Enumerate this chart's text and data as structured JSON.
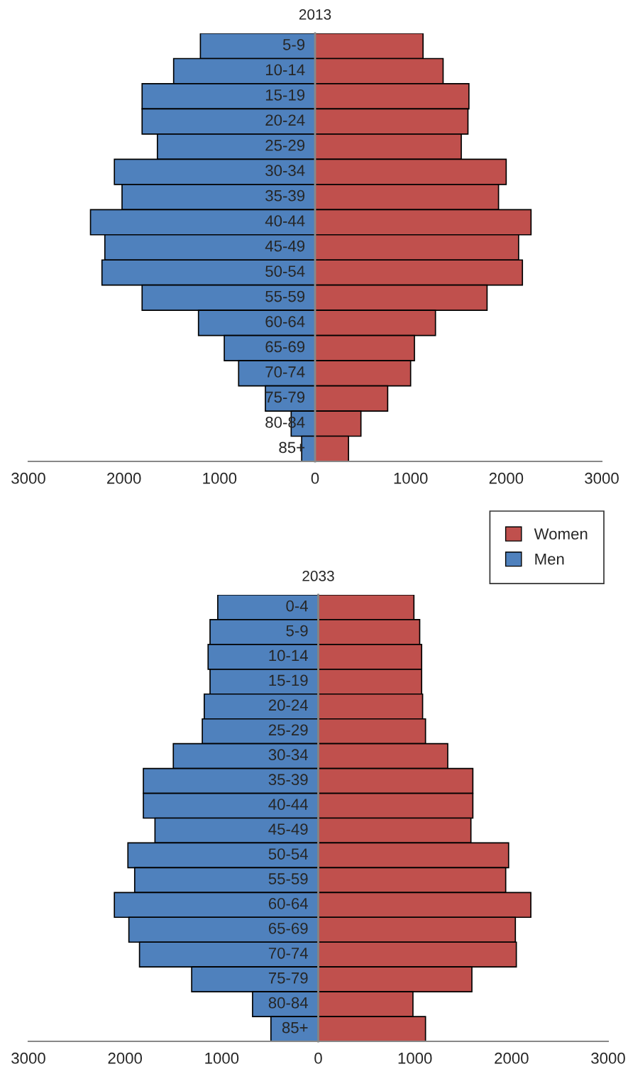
{
  "chart_data": [
    {
      "type": "bar",
      "orientation": "horizontal",
      "stacked": true,
      "title": "2013",
      "categories": [
        "5-9",
        "10-14",
        "15-19",
        "20-24",
        "25-29",
        "30-34",
        "35-39",
        "40-44",
        "45-49",
        "50-54",
        "55-59",
        "60-64",
        "65-69",
        "70-74",
        "75-79",
        "80-84",
        "85+"
      ],
      "series": [
        {
          "color": "#c0504d",
          "values": [
            1130,
            1340,
            1610,
            1600,
            1530,
            2000,
            1920,
            2260,
            2130,
            2170,
            1800,
            1260,
            1040,
            1000,
            760,
            480,
            350
          ]
        },
        {
          "color": "#4f81bd",
          "values": [
            -1200,
            -1480,
            -1810,
            -1810,
            -1650,
            -2100,
            -2020,
            -2350,
            -2200,
            -2230,
            -1810,
            -1220,
            -950,
            -800,
            -520,
            -250,
            -140
          ]
        }
      ],
      "xlim": [
        -3000,
        3000
      ],
      "xticks": [
        {
          "value": -3000,
          "label": "3000"
        },
        {
          "value": -2000,
          "label": "2000"
        },
        {
          "value": -1000,
          "label": "1000"
        },
        0,
        1000,
        2000,
        3000
      ],
      "grid": false,
      "legend": false
    },
    {
      "type": "bar",
      "orientation": "horizontal",
      "stacked": true,
      "title": "2033",
      "categories": [
        "0-4",
        "5-9",
        "10-14",
        "15-19",
        "20-24",
        "25-29",
        "30-34",
        "35-39",
        "40-44",
        "45-49",
        "50-54",
        "55-59",
        "60-64",
        "65-69",
        "70-74",
        "75-79",
        "80-84",
        "85+"
      ],
      "series": [
        {
          "name": "Women",
          "color": "#c0504d",
          "values": [
            990,
            1050,
            1070,
            1070,
            1080,
            1110,
            1340,
            1600,
            1600,
            1580,
            1970,
            1940,
            2200,
            2040,
            2050,
            1590,
            980,
            1110
          ]
        },
        {
          "name": "Men",
          "color": "#4f81bd",
          "values": [
            -1040,
            -1120,
            -1140,
            -1120,
            -1180,
            -1200,
            -1500,
            -1810,
            -1810,
            -1690,
            -1970,
            -1900,
            -2110,
            -1960,
            -1850,
            -1310,
            -680,
            -490
          ]
        }
      ],
      "xlim": [
        -3000,
        3000
      ],
      "xticks": [
        {
          "value": -3000,
          "label": "3000"
        },
        {
          "value": -2000,
          "label": "2000"
        },
        {
          "value": -1000,
          "label": "1000"
        },
        0,
        1000,
        2000,
        3000
      ],
      "grid": false,
      "legend": "top right"
    }
  ]
}
